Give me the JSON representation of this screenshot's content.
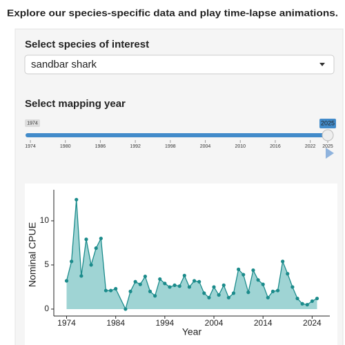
{
  "header": {
    "title": "Explore our species-specific data and play time-lapse animations."
  },
  "species": {
    "label": "Select species of interest",
    "selected": "sandbar shark"
  },
  "year": {
    "label": "Select mapping year",
    "min": 1974,
    "max": 2025,
    "value": 2025,
    "ticks": [
      1974,
      1980,
      1986,
      1992,
      1998,
      2004,
      2010,
      2016,
      2022,
      2025
    ]
  },
  "chart_data": {
    "type": "area",
    "xlabel": "Year",
    "ylabel": "Nominal CPUE",
    "x": [
      1974,
      1975,
      1976,
      1977,
      1978,
      1979,
      1980,
      1981,
      1982,
      1983,
      1984,
      1986,
      1987,
      1988,
      1989,
      1990,
      1991,
      1992,
      1993,
      1994,
      1995,
      1996,
      1997,
      1998,
      1999,
      2000,
      2001,
      2002,
      2003,
      2004,
      2005,
      2006,
      2007,
      2008,
      2009,
      2010,
      2011,
      2012,
      2013,
      2014,
      2015,
      2016,
      2017,
      2018,
      2019,
      2020,
      2021,
      2022,
      2023,
      2024,
      2025
    ],
    "values": [
      3.2,
      5.4,
      12.4,
      3.75,
      7.9,
      5.0,
      6.9,
      8.0,
      2.1,
      2.1,
      2.3,
      0,
      2.0,
      3.1,
      2.8,
      3.7,
      2.0,
      1.5,
      3.4,
      2.9,
      2.5,
      2.7,
      2.6,
      3.8,
      2.5,
      3.2,
      3.1,
      1.8,
      1.3,
      2.5,
      1.6,
      2.7,
      1.3,
      1.8,
      4.5,
      3.9,
      1.9,
      4.4,
      3.3,
      2.8,
      1.3,
      2.0,
      2.1,
      5.4,
      4.0,
      2.5,
      1.2,
      0.6,
      0.5,
      0.9,
      1.2
    ],
    "color": "#1b8b8b",
    "fill": "#9fd4d4",
    "xlim": [
      1971.4,
      2027.6
    ],
    "ylim": [
      -0.63,
      12.97
    ],
    "xticks": [
      1974,
      1984,
      1994,
      2004,
      2014,
      2024
    ],
    "yticks": [
      0,
      5,
      10
    ]
  }
}
